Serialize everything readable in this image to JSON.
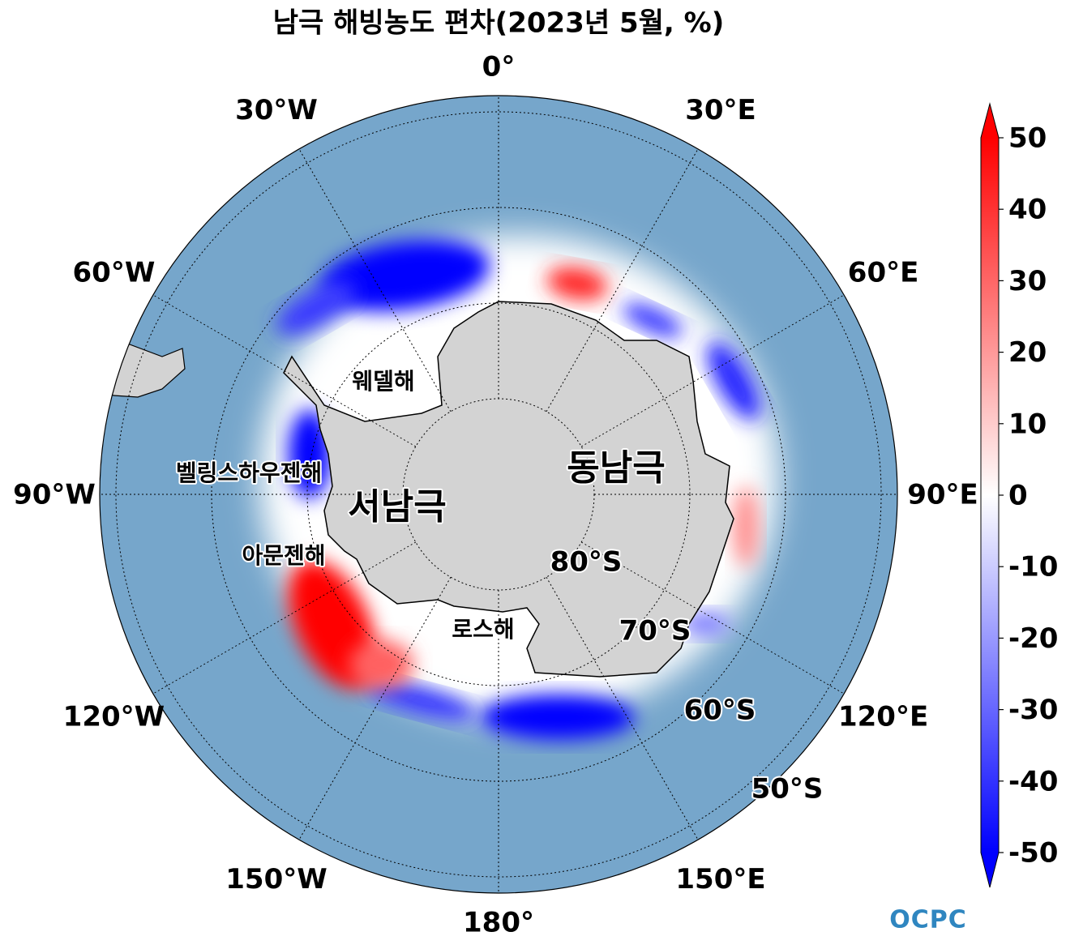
{
  "map": {
    "title": "남극 해빙농도 편차(2023년 5월, %)",
    "lon_labels": [
      "0°",
      "30°E",
      "60°E",
      "90°E",
      "120°E",
      "150°E",
      "180°",
      "150°W",
      "120°W",
      "90°W",
      "60°W",
      "30°W"
    ],
    "lat_labels": [
      "80°S",
      "70°S",
      "60°S",
      "50°S"
    ],
    "regions": [
      "웨델해",
      "벨링스하우젠해",
      "아문젠해",
      "로스해",
      "동남극",
      "서남극"
    ],
    "colorbar": {
      "lim": [
        -50,
        50
      ],
      "ticks": [
        -50,
        -40,
        -30,
        -20,
        -10,
        0,
        10,
        20,
        30,
        40,
        50
      ],
      "colors": [
        "#0000ff",
        "#ffffff",
        "#ff0000"
      ]
    },
    "logo": "OCPC"
  }
}
